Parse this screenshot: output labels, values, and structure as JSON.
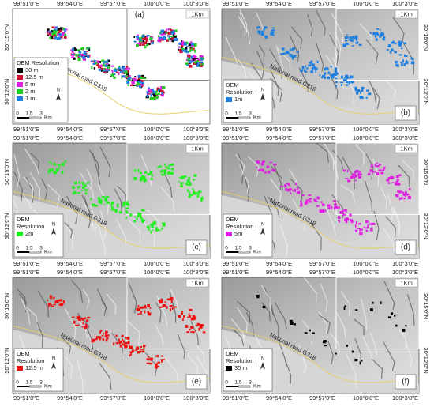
{
  "lon_labels": [
    "99°51'0\"E",
    "99°54'0\"E",
    "99°57'0\"E",
    "100°0'0\"E",
    "100°3'0\"E"
  ],
  "lat_labels": [
    "30°15'0\"N",
    "30°12'0\"N"
  ],
  "inset_label": "1Km",
  "road_label": "National road G318",
  "north": "N",
  "scale": {
    "ticks": [
      "0",
      "1.5",
      "3"
    ],
    "unit": "Km"
  },
  "panels": [
    {
      "label": "(a)",
      "legend_title": [
        "DEM Resolution"
      ],
      "legend_items": [
        {
          "label": "30 m",
          "color": "#000000"
        },
        {
          "label": "12.5 m",
          "color": "#c8102e"
        },
        {
          "label": "5 m",
          "color": "#e020e0"
        },
        {
          "label": "2 m",
          "color": "#22cc22"
        },
        {
          "label": "1 m",
          "color": "#1e7fe0"
        }
      ]
    },
    {
      "label": "(b)",
      "legend_title": [
        "DEM",
        "Resolution"
      ],
      "legend_items": [
        {
          "label": "1m",
          "color": "#1e7fe0"
        }
      ]
    },
    {
      "label": "(c)",
      "legend_title": [
        "DEM",
        "Resolution"
      ],
      "legend_items": [
        {
          "label": "2m",
          "color": "#22ee22"
        }
      ]
    },
    {
      "label": "(d)",
      "legend_title": [
        "DEM",
        "Resolution"
      ],
      "legend_items": [
        {
          "label": "5m",
          "color": "#e020e0"
        }
      ]
    },
    {
      "label": "(e)",
      "legend_title": [
        "DEM",
        "Resolution"
      ],
      "legend_items": [
        {
          "label": "12.5 m",
          "color": "#ee1111"
        }
      ]
    },
    {
      "label": "(f)",
      "legend_title": [
        "DEM",
        "Resolution"
      ],
      "legend_items": [
        {
          "label": "30 m",
          "color": "#000000"
        }
      ]
    }
  ]
}
